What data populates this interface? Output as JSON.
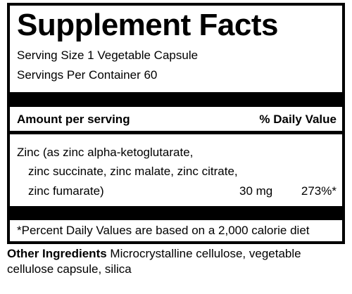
{
  "label": {
    "title": "Supplement Facts",
    "serving_size": "Serving Size 1 Vegetable Capsule",
    "servings_per_container": "Servings Per Container 60",
    "amount_per_serving": "Amount per serving",
    "daily_value_header": "% Daily Value",
    "nutrient": {
      "line1": "Zinc (as zinc alpha-ketoglutarate,",
      "line2": "zinc succinate, zinc malate, zinc citrate,",
      "line3": "zinc fumarate)",
      "amount": "30 mg",
      "daily_value": "273%*"
    },
    "footnote": "*Percent Daily Values are based on a 2,000 calorie diet"
  },
  "other_ingredients": {
    "heading": "Other Ingredients",
    "text": "Microcrystalline cellulose, vegetable cellulose capsule, silica"
  }
}
